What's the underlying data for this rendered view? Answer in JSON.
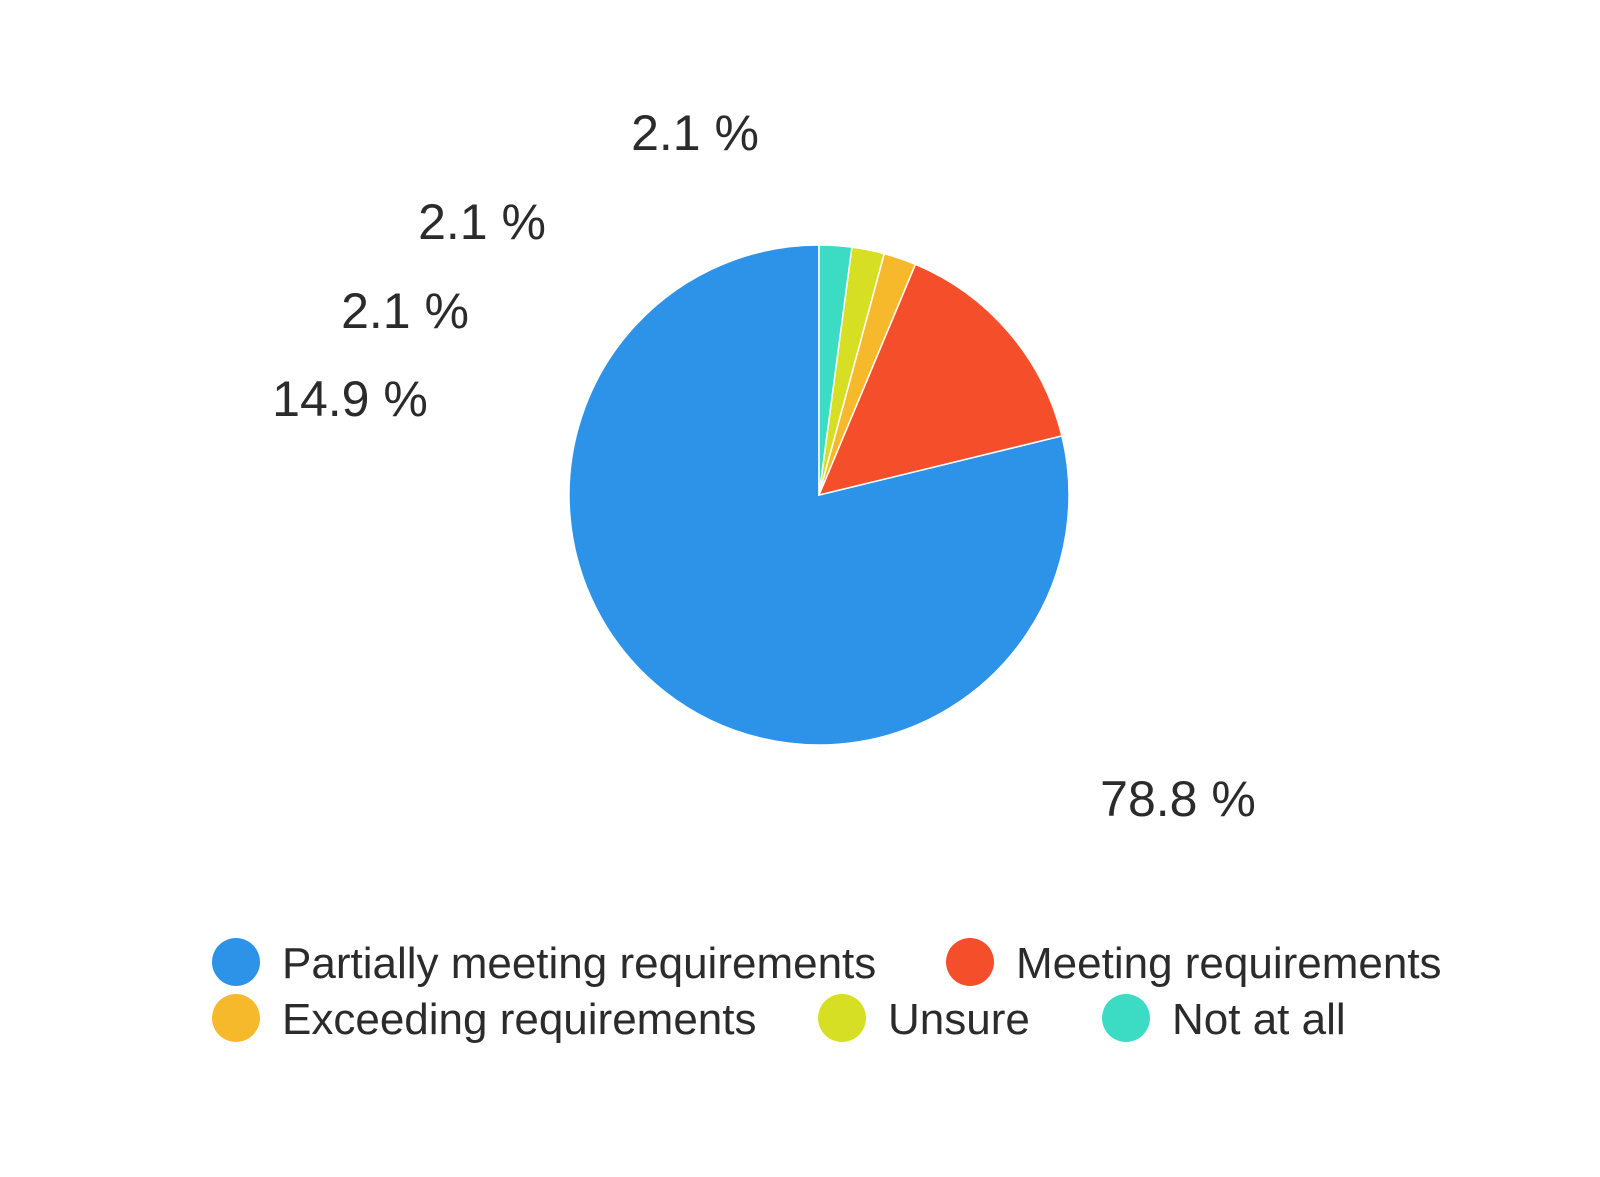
{
  "chart_data": {
    "type": "pie",
    "title": "",
    "start_angle_deg": -90,
    "direction": "clockwise",
    "legend_position": "bottom",
    "series": [
      {
        "name": "Partially meeting requirements",
        "value": 78.8,
        "label": "78.8 %",
        "color": "#2d93e8"
      },
      {
        "name": "Meeting requirements",
        "value": 14.9,
        "label": "14.9 %",
        "color": "#f44f2a"
      },
      {
        "name": "Exceeding requirements",
        "value": 2.1,
        "label": "2.1 %",
        "color": "#f6b92b"
      },
      {
        "name": "Unsure",
        "value": 2.1,
        "label": "2.1 %",
        "color": "#d6df23"
      },
      {
        "name": "Not at all",
        "value": 2.1,
        "label": "2.1 %",
        "color": "#3cdbc4"
      }
    ]
  }
}
